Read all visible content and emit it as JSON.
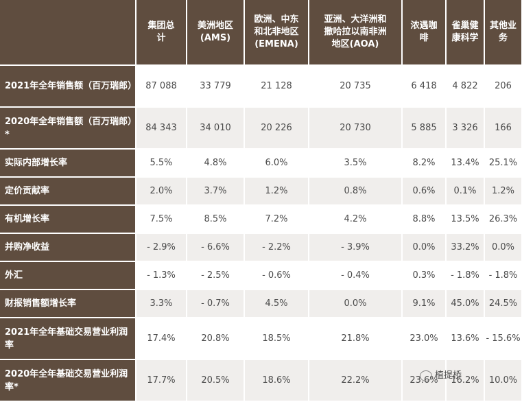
{
  "table": {
    "headers": [
      "",
      "集团总计",
      "美洲地区(AMS)",
      "欧洲、中东和北非地区(EMENA)",
      "亚洲、大洋洲和撒哈拉以南非洲地区(AOA)",
      "浓遇咖啡",
      "雀巢健康科学",
      "其他业务"
    ],
    "rows": [
      {
        "label": "2021年全年销售额（百万瑞郎）",
        "values": [
          "87 088",
          "33 779",
          "21 128",
          "20 735",
          "6 418",
          "4 822",
          "206"
        ]
      },
      {
        "label": "2020年全年销售额（百万瑞郎）*",
        "values": [
          "84 343",
          "34 010",
          "20 226",
          "20 730",
          "5 885",
          "3 326",
          "166"
        ]
      },
      {
        "label": "实际内部增长率",
        "values": [
          "5.5%",
          "4.8%",
          "6.0%",
          "3.5%",
          "8.2%",
          "13.4%",
          "25.1%"
        ]
      },
      {
        "label": "定价贡献率",
        "values": [
          "2.0%",
          "3.7%",
          "1.2%",
          "0.8%",
          "0.6%",
          "0.1%",
          "1.2%"
        ]
      },
      {
        "label": "有机增长率",
        "values": [
          "7.5%",
          "8.5%",
          "7.2%",
          "4.2%",
          "8.8%",
          "13.5%",
          "26.3%"
        ]
      },
      {
        "label": "并购净收益",
        "values": [
          "- 2.9%",
          "- 6.6%",
          "- 2.2%",
          "- 3.9%",
          "0.0%",
          "33.2%",
          "0.0%"
        ]
      },
      {
        "label": "外汇",
        "values": [
          "- 1.3%",
          "- 2.5%",
          "- 0.6%",
          "- 0.4%",
          "0.3%",
          "- 1.8%",
          "- 1.8%"
        ]
      },
      {
        "label": "财报销售额增长率",
        "values": [
          "3.3%",
          "- 0.7%",
          "4.5%",
          "0.0%",
          "9.1%",
          "45.0%",
          "24.5%"
        ]
      },
      {
        "label": "2021年全年基础交易营业利润率",
        "values": [
          "17.4%",
          "20.8%",
          "18.5%",
          "21.8%",
          "23.0%",
          "13.6%",
          "- 15.6%"
        ]
      },
      {
        "label": "2020年全年基础交易营业利润率*",
        "values": [
          "17.7%",
          "20.5%",
          "18.6%",
          "22.2%",
          "23.6%",
          "16.2%",
          "10.0%"
        ]
      }
    ]
  },
  "watermark": {
    "text": "植提桥"
  }
}
